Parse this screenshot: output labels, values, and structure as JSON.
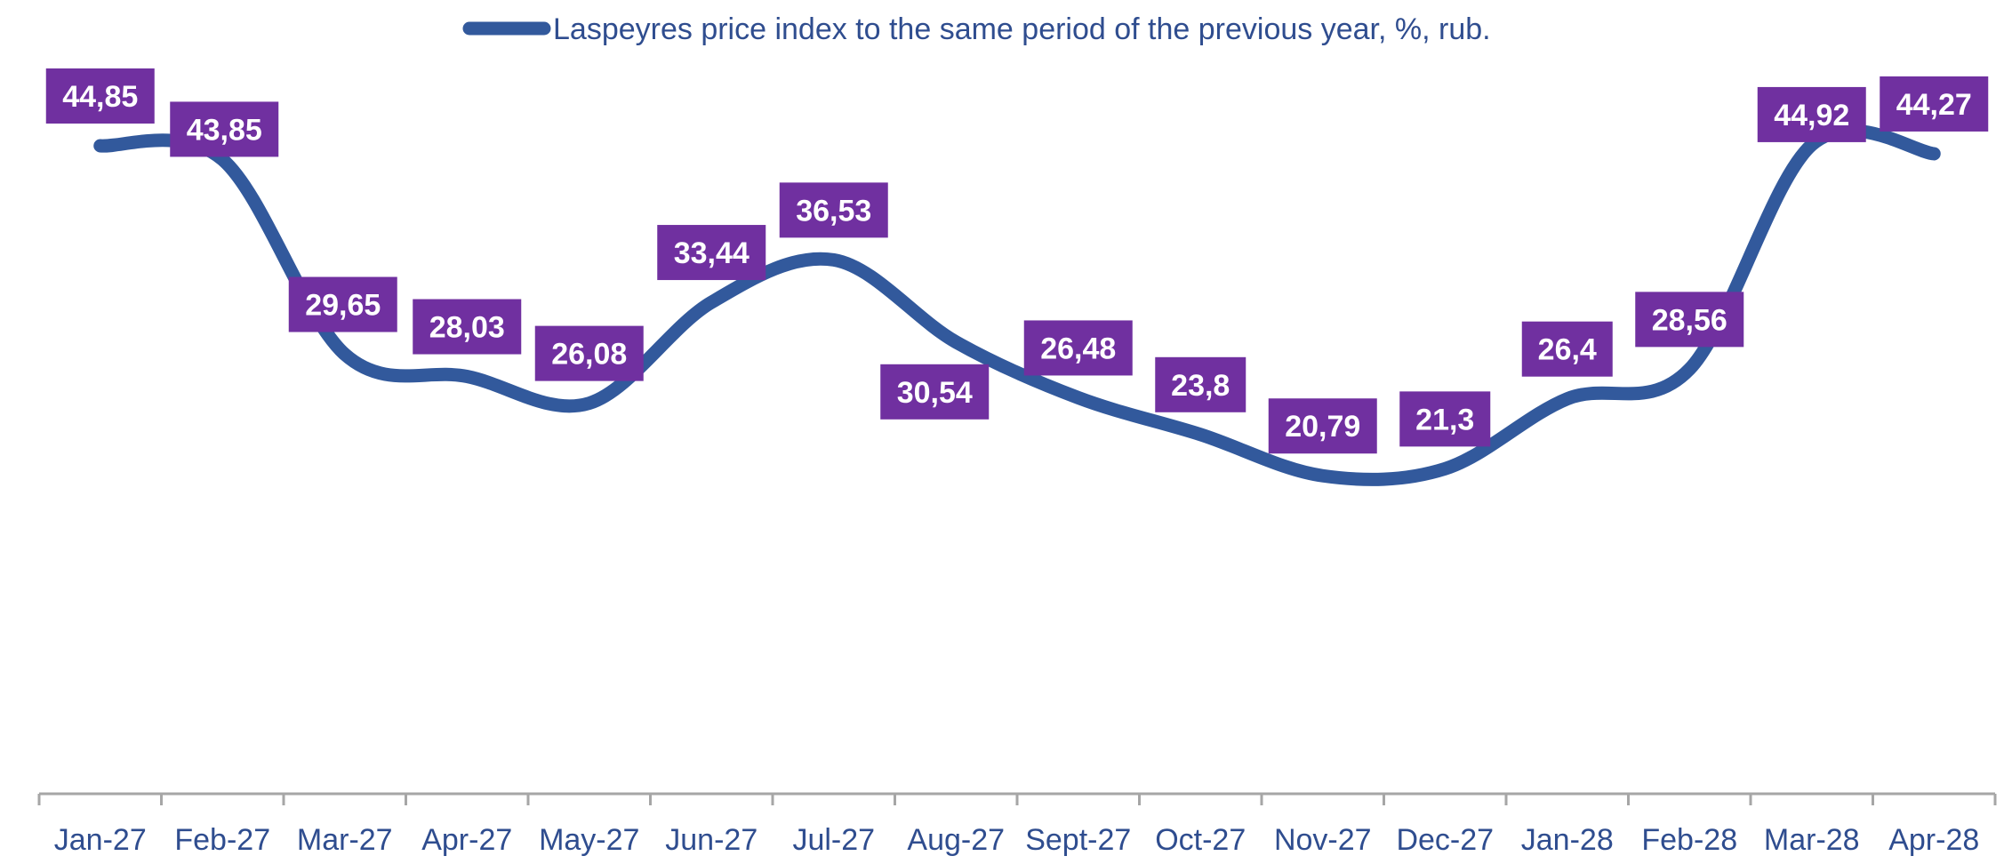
{
  "chart_data": {
    "type": "line",
    "title": "",
    "xlabel": "",
    "ylabel": "",
    "categories": [
      "Jan-27",
      "Feb-27",
      "Mar-27",
      "Apr-27",
      "May-27",
      "Jun-27",
      "Jul-27",
      "Aug-27",
      "Sept-27",
      "Oct-27",
      "Nov-27",
      "Dec-27",
      "Jan-28",
      "Feb-28",
      "Mar-28",
      "Apr-28"
    ],
    "series": [
      {
        "name": "Laspeyres price index to the same period of the previous year, %, rub.",
        "values": [
          44.85,
          43.85,
          29.65,
          28.03,
          26.08,
          33.44,
          36.53,
          30.54,
          26.48,
          23.8,
          20.79,
          21.3,
          26.4,
          28.56,
          44.92,
          44.27
        ],
        "labels": [
          "44,85",
          "43,85",
          "29,65",
          "28,03",
          "26,08",
          "33,44",
          "36,53",
          "30,54",
          "26,48",
          "23,8",
          "20,79",
          "21,3",
          "26,4",
          "28,56",
          "44,92",
          "44,27"
        ],
        "color": "#32599c"
      }
    ],
    "label_box_color": "#7030a0",
    "axis_color": "#a6a6a6",
    "legend_position": "top",
    "grid": false,
    "y_axis_visible": false
  }
}
